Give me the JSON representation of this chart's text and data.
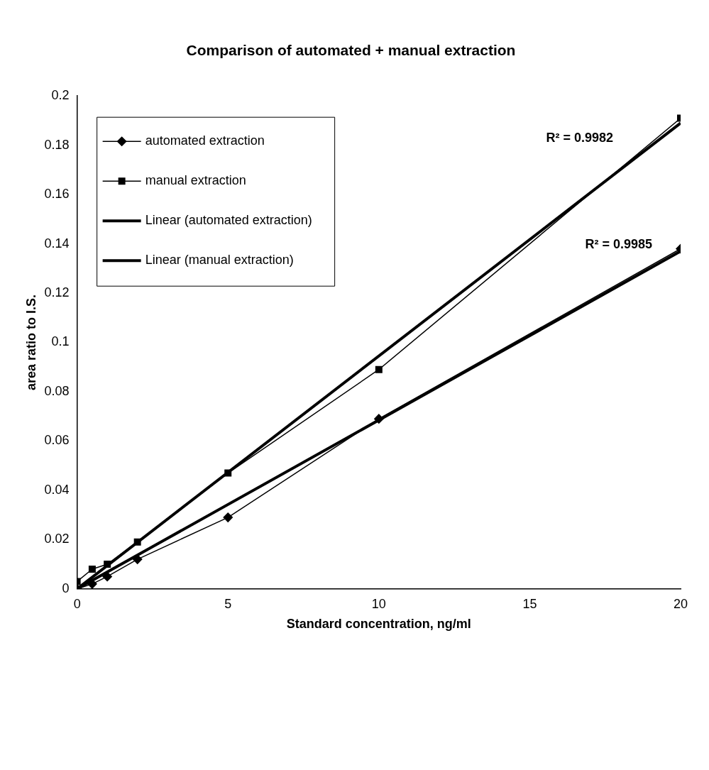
{
  "chart_data": {
    "type": "line",
    "title": "Comparison of automated + manual extraction",
    "xlabel": "Standard concentration, ng/ml",
    "ylabel": "area ratio to I.S.",
    "xlim": [
      0,
      20
    ],
    "xticks": [
      0,
      5,
      10,
      15,
      20
    ],
    "ylim": [
      0,
      0.2
    ],
    "yticks": [
      0,
      0.02,
      0.04,
      0.06,
      0.08,
      0.1,
      0.12,
      0.14,
      0.16,
      0.18,
      0.2
    ],
    "grid": false,
    "legend": "top left",
    "line_style": "solid",
    "series": [
      {
        "name": "automated extraction",
        "color": "#000000",
        "marker": "diamond",
        "x": [
          0,
          0.5,
          1,
          2,
          5,
          10,
          20
        ],
        "values": [
          0,
          0.002,
          0.005,
          0.012,
          0.029,
          0.069,
          0.138
        ]
      },
      {
        "name": "manual extraction",
        "color": "#000000",
        "marker": "square",
        "x": [
          0,
          0.5,
          1,
          2,
          5,
          10,
          20
        ],
        "values": [
          0.003,
          0.008,
          0.01,
          0.019,
          0.047,
          0.089,
          0.191
        ]
      },
      {
        "name": "Linear (automated extraction)",
        "color": "#000000",
        "marker": "none",
        "x": [
          0,
          20
        ],
        "values": [
          0,
          0.137
        ]
      },
      {
        "name": "Linear (manual extraction)",
        "color": "#000000",
        "marker": "none",
        "x": [
          0,
          20
        ],
        "values": [
          0,
          0.189
        ]
      }
    ],
    "annotations": [
      "R² = 0.9982",
      "R² = 0.9985"
    ]
  }
}
